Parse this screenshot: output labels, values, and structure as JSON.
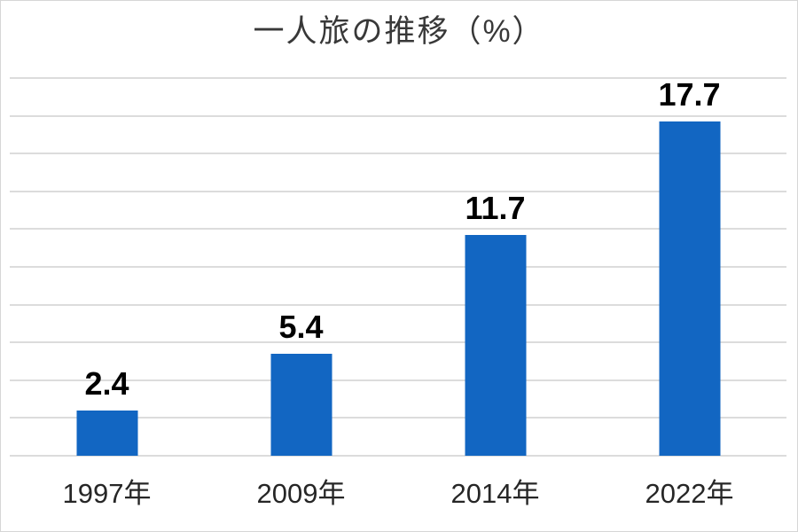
{
  "chart_data": {
    "type": "bar",
    "title": "一人旅の推移（%）",
    "categories": [
      "1997年",
      "2009年",
      "2014年",
      "2022年"
    ],
    "values": [
      2.4,
      5.4,
      11.7,
      17.7
    ],
    "data_labels": [
      "2.4",
      "5.4",
      "11.7",
      "17.7"
    ],
    "xlabel": "",
    "ylabel": "",
    "ylim": [
      0,
      20
    ],
    "gridline_step": 2,
    "grid": true,
    "legend_position": "none",
    "bar_color": "#1266c2",
    "gridline_color": "#dcdcdc",
    "data_label_color": "#000000",
    "axis_label_color": "#262626",
    "title_color": "#383838",
    "background_color": "#ffffff",
    "border_color": "#d6d6d6"
  }
}
